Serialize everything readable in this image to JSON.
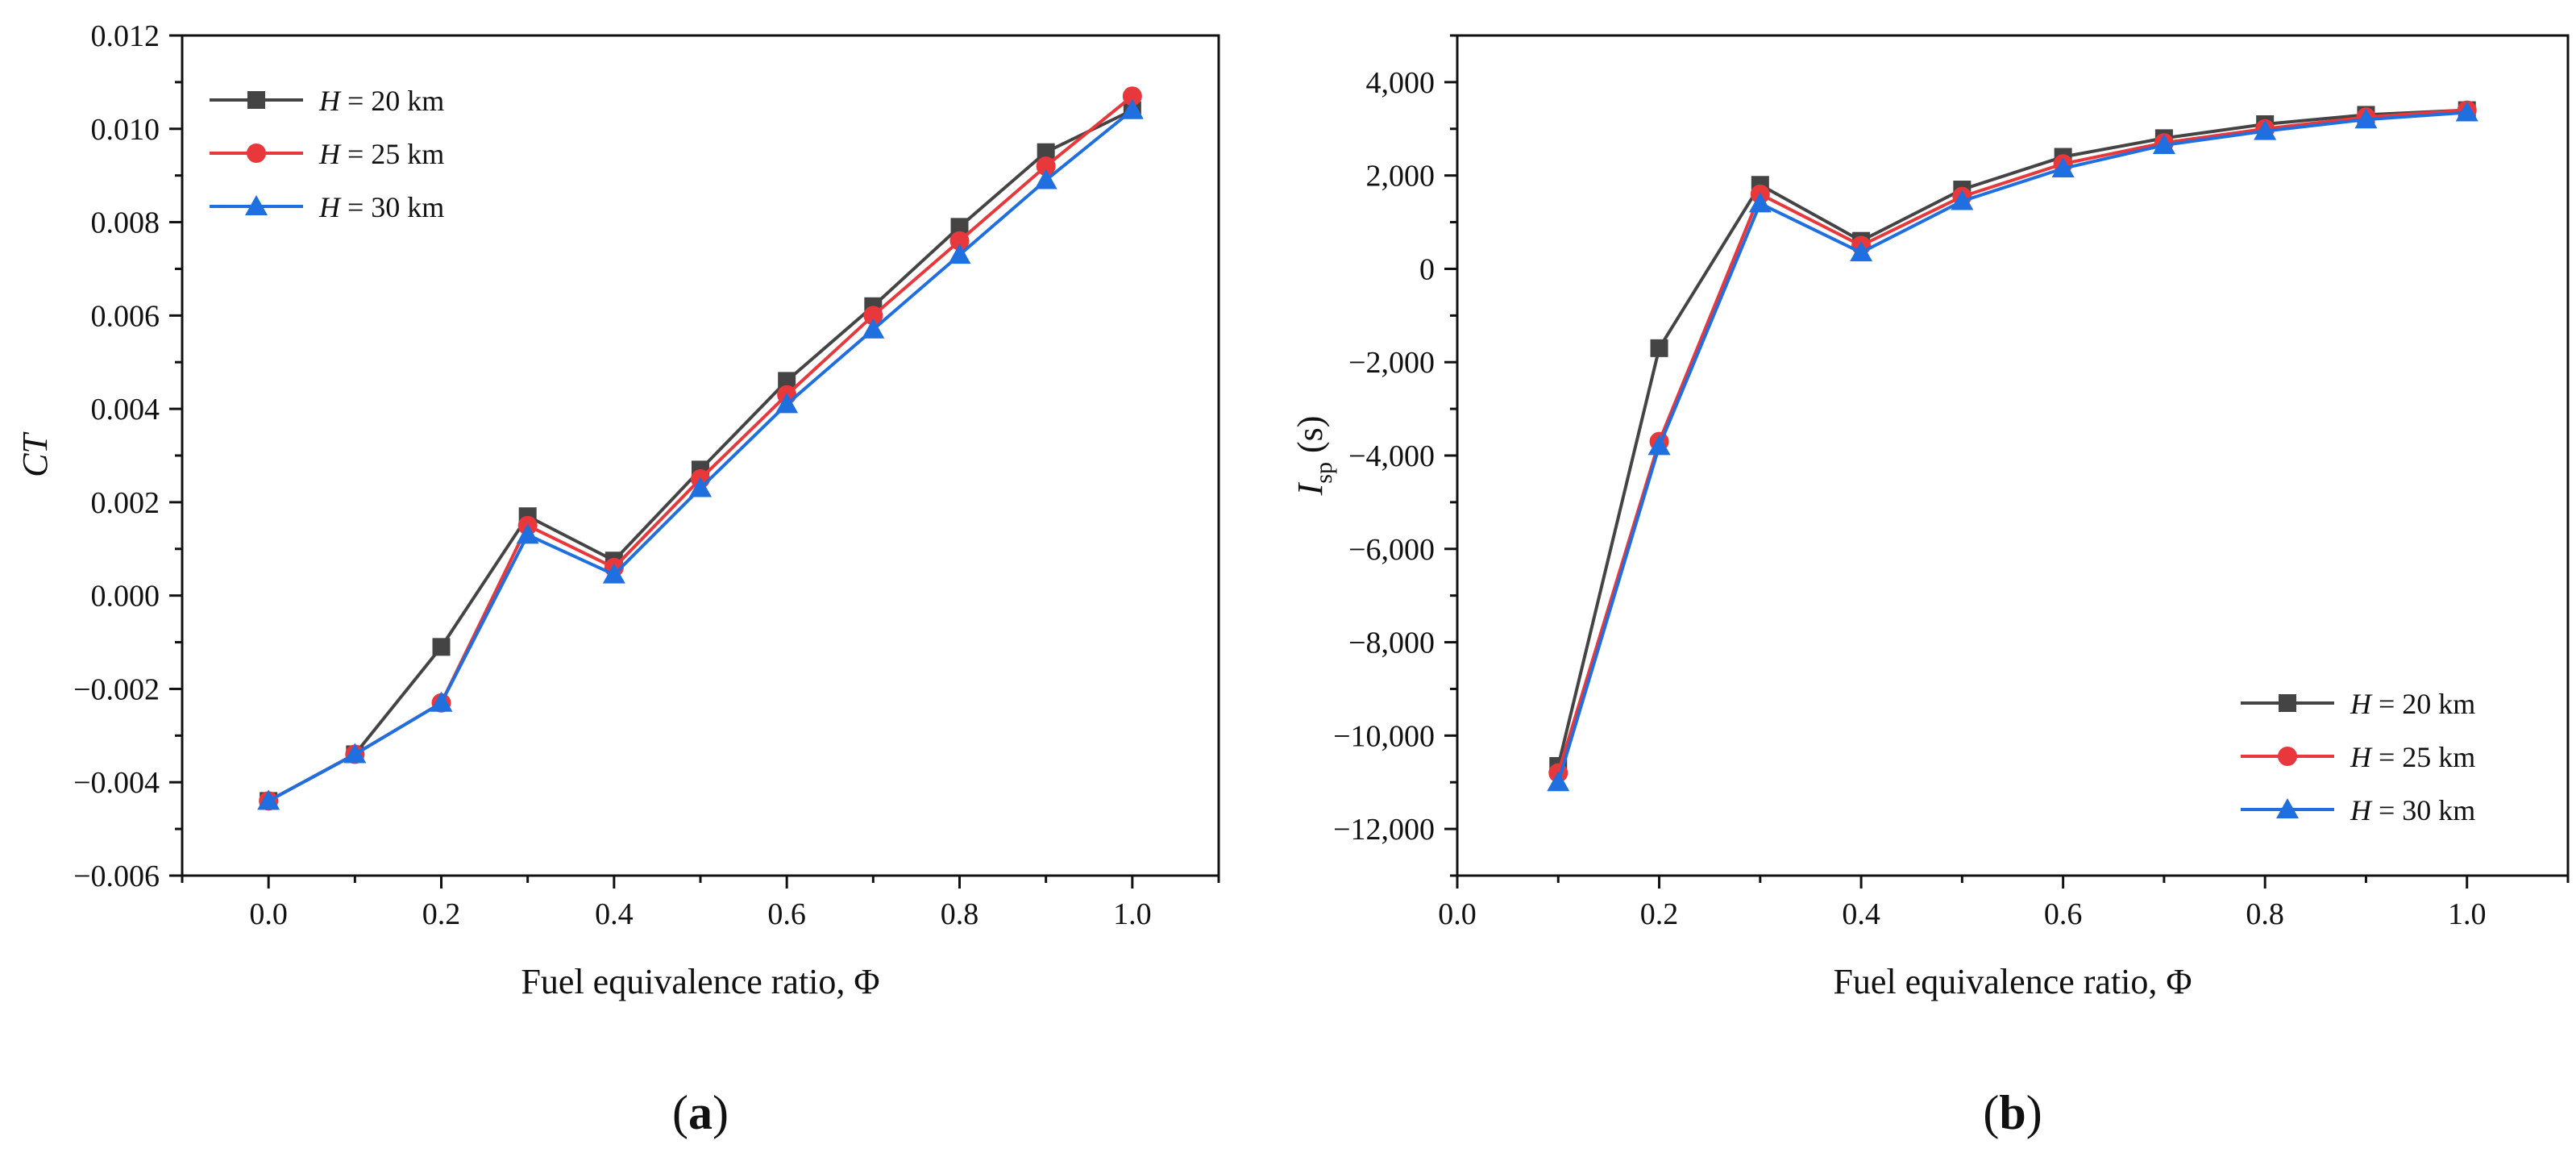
{
  "chart_data": [
    {
      "type": "line",
      "panel_label": "(a)",
      "panel_letter": "a",
      "xlabel": "Fuel equivalence ratio, Φ",
      "ylabel": "CT",
      "xlim": [
        -0.1,
        1.1
      ],
      "ylim": [
        -0.006,
        0.012
      ],
      "x_ticks": [
        0.0,
        0.2,
        0.4,
        0.6,
        0.8,
        1.0
      ],
      "x_tick_labels": [
        "0.0",
        "0.2",
        "0.4",
        "0.6",
        "0.8",
        "1.0"
      ],
      "y_ticks": [
        -0.006,
        -0.004,
        -0.002,
        0.0,
        0.002,
        0.004,
        0.006,
        0.008,
        0.01,
        0.012
      ],
      "y_tick_labels": [
        "−0.006",
        "−0.004",
        "−0.002",
        "0.000",
        "0.002",
        "0.004",
        "0.006",
        "0.008",
        "0.010",
        "0.012"
      ],
      "legend_position": "top-left",
      "grid": false,
      "x": [
        0.0,
        0.1,
        0.2,
        0.3,
        0.4,
        0.5,
        0.6,
        0.7,
        0.8,
        0.9,
        1.0
      ],
      "series": [
        {
          "name": "H = 20 km",
          "legend_var": "H",
          "legend_rest": " = 20 km",
          "color": "#444444",
          "marker": "square",
          "values": [
            -0.0044,
            -0.0034,
            -0.0011,
            0.0017,
            0.00075,
            0.0027,
            0.0046,
            0.0062,
            0.0079,
            0.0095,
            0.0104
          ]
        },
        {
          "name": "H = 25 km",
          "legend_var": "H",
          "legend_rest": " = 25 km",
          "color": "#e8383b",
          "marker": "circle",
          "values": [
            -0.0044,
            -0.0034,
            -0.0023,
            0.0015,
            0.0006,
            0.0025,
            0.0043,
            0.006,
            0.0076,
            0.0092,
            0.0107
          ]
        },
        {
          "name": "H = 30 km",
          "legend_var": "H",
          "legend_rest": " = 30 km",
          "color": "#1f6fe0",
          "marker": "triangle",
          "values": [
            -0.0044,
            -0.0034,
            -0.0023,
            0.0013,
            0.00045,
            0.0023,
            0.0041,
            0.0057,
            0.0073,
            0.0089,
            0.0104
          ]
        }
      ]
    },
    {
      "type": "line",
      "panel_label": "(b)",
      "panel_letter": "b",
      "xlabel": "Fuel equivalence ratio, Φ",
      "ylabel_main": "I",
      "ylabel_sub": "sp",
      "ylabel_unit": " (s)",
      "xlim": [
        0.0,
        1.1
      ],
      "ylim": [
        -13000,
        5000
      ],
      "x_ticks": [
        0.0,
        0.2,
        0.4,
        0.6,
        0.8,
        1.0
      ],
      "x_tick_labels": [
        "0.0",
        "0.2",
        "0.4",
        "0.6",
        "0.8",
        "1.0"
      ],
      "y_ticks": [
        -12000,
        -10000,
        -8000,
        -6000,
        -4000,
        -2000,
        0,
        2000,
        4000
      ],
      "y_tick_labels": [
        "−12,000",
        "−10,000",
        "−8,000",
        "−6,000",
        "−4,000",
        "−2,000",
        "0",
        "2,000",
        "4,000"
      ],
      "legend_position": "bottom-right",
      "grid": false,
      "x": [
        0.1,
        0.2,
        0.3,
        0.4,
        0.5,
        0.6,
        0.7,
        0.8,
        0.9,
        1.0
      ],
      "series": [
        {
          "name": "H = 20 km",
          "legend_var": "H",
          "legend_rest": " = 20 km",
          "color": "#444444",
          "marker": "square",
          "values": [
            -10650,
            -1700,
            1800,
            600,
            1700,
            2400,
            2800,
            3100,
            3300,
            3400
          ]
        },
        {
          "name": "H = 25 km",
          "legend_var": "H",
          "legend_rest": " = 25 km",
          "color": "#e8383b",
          "marker": "circle",
          "values": [
            -10800,
            -3700,
            1600,
            500,
            1550,
            2250,
            2700,
            3000,
            3250,
            3400
          ]
        },
        {
          "name": "H = 30 km",
          "legend_var": "H",
          "legend_rest": " = 30 km",
          "color": "#1f6fe0",
          "marker": "triangle",
          "values": [
            -11000,
            -3800,
            1400,
            350,
            1450,
            2150,
            2650,
            2950,
            3200,
            3350
          ]
        }
      ]
    }
  ]
}
